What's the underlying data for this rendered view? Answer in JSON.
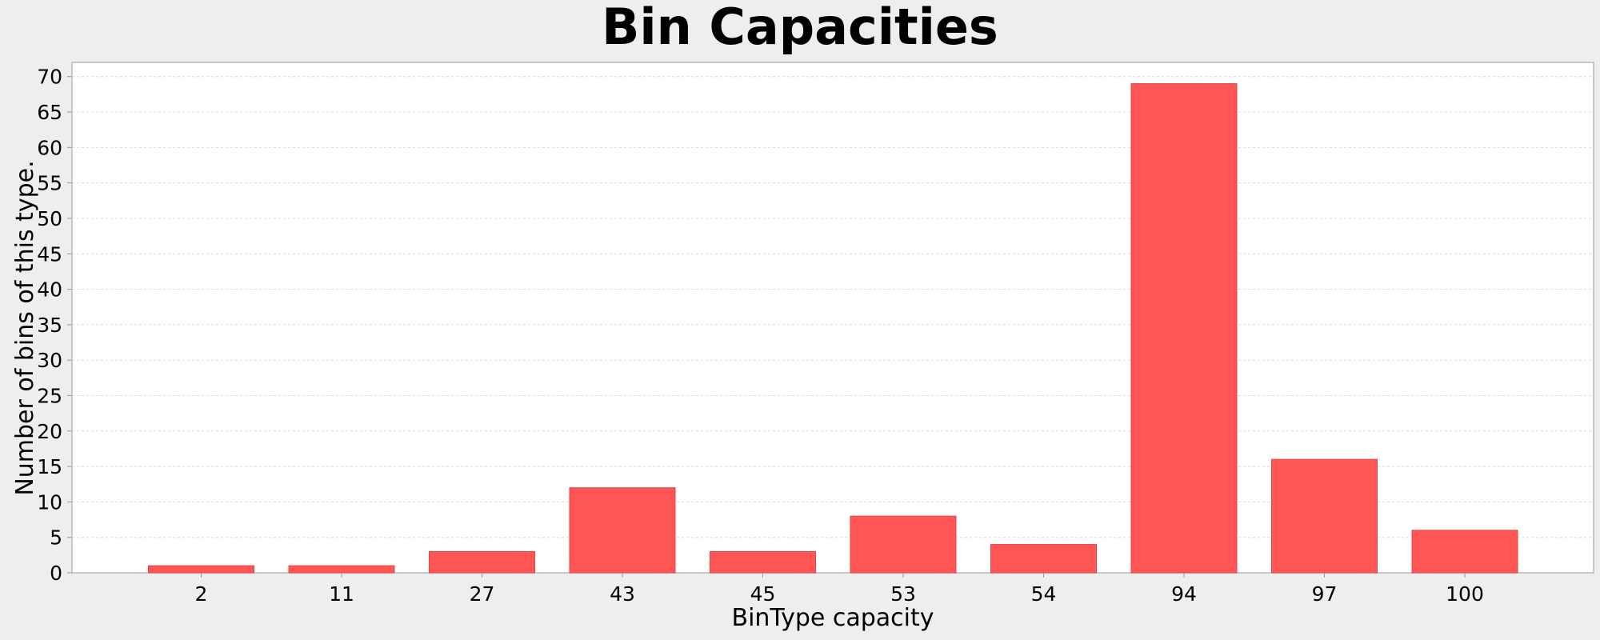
{
  "chart_data": {
    "type": "bar",
    "title": "Bin Capacities",
    "xlabel": "BinType capacity",
    "ylabel": "Number of bins of this type.",
    "categories": [
      "2",
      "11",
      "27",
      "43",
      "45",
      "53",
      "54",
      "94",
      "97",
      "100"
    ],
    "values": [
      1,
      1,
      3,
      12,
      3,
      8,
      4,
      69,
      16,
      6
    ],
    "ylim": [
      0,
      72
    ],
    "yticks": [
      0,
      5,
      10,
      15,
      20,
      25,
      30,
      35,
      40,
      45,
      50,
      55,
      60,
      65,
      70
    ],
    "grid": true,
    "legend": "none",
    "colors": {
      "bar": "#ff5555",
      "grid": "#d8d8d8",
      "plot_background": "#ffffff",
      "page_background": "#eeeeee",
      "axis": "#999999",
      "text": "#000000"
    }
  }
}
